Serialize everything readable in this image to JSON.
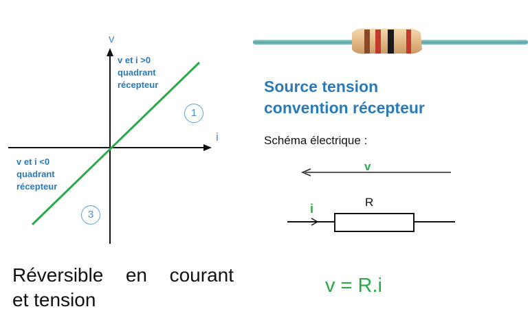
{
  "graph": {
    "axis_v_label": "v",
    "axis_i_label": "i",
    "quadrant1_note": [
      "v et i >0",
      "quadrant",
      "récepteur"
    ],
    "quadrant3_note": [
      "v et i <0",
      "quadrant",
      "récepteur"
    ],
    "quadrant1_number": "1",
    "quadrant3_number": "3",
    "line_color": "#2aa84a"
  },
  "caption": {
    "line1_words": [
      "Réversible",
      "en",
      "courant"
    ],
    "line2": "et tension"
  },
  "right": {
    "image_description": "resistor-photo",
    "title_lines": [
      "Source tension",
      "convention récepteur"
    ],
    "schema_label": "Schéma électrique :",
    "voltage_label": "v",
    "current_label": "i",
    "resistor_label": "R",
    "formula": "v = R.i"
  },
  "colors": {
    "accent_blue": "#2a7ab8",
    "accent_green": "#2aa84a"
  }
}
